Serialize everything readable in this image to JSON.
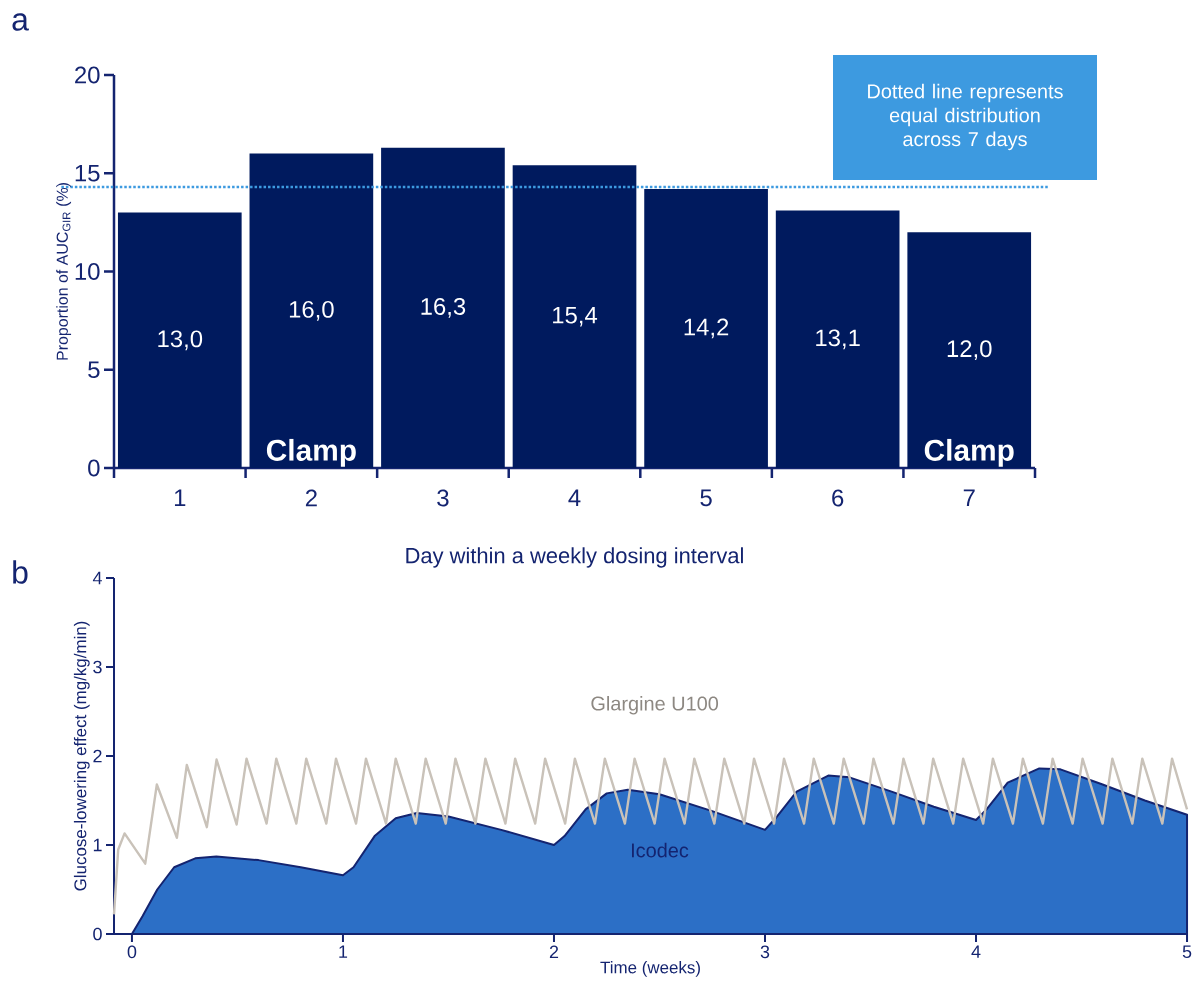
{
  "chart_data": [
    {
      "type": "bar",
      "title": "a",
      "xlabel": "Day within a weekly dosing interval",
      "ylabel": "Proportion of AUC$_{GIR}$ (%)",
      "categories": [
        "1",
        "2",
        "3",
        "4",
        "5",
        "6",
        "7"
      ],
      "values": [
        13.0,
        16.0,
        16.3,
        15.4,
        14.2,
        13.1,
        12.0
      ],
      "value_labels": [
        "13,0",
        "16,0",
        "16,3",
        "15,4",
        "14,2",
        "13,1",
        "12,0"
      ],
      "color": "#001a5e",
      "ylim": [
        0,
        20
      ],
      "yticks": [
        0,
        5,
        10,
        15,
        20
      ],
      "ref_lines": [
        {
          "axis": "y",
          "value": 14.3,
          "label": "Dotted line represents equal distribution across 7 days",
          "color": "#3d9ae0",
          "line_style": "dotted"
        }
      ],
      "annotations": [
        {
          "text": "Clamp",
          "x": "2",
          "y": 0
        },
        {
          "text": "Clamp",
          "x": "7",
          "y": 0
        }
      ]
    },
    {
      "type": "line",
      "title": "b",
      "xlabel": "Time (weeks)",
      "ylabel": "Glucose-lowering effect (mg/kg/min)",
      "xlim": [
        -0.085,
        5
      ],
      "xticks": [
        0,
        1,
        2,
        3,
        4,
        5
      ],
      "ylim": [
        0,
        4
      ],
      "yticks": [
        0,
        1,
        2,
        3,
        4
      ],
      "series": [
        {
          "name": "Icodec",
          "type": "area",
          "color": "#2c6fc6",
          "x": [
            0,
            0.05,
            0.12,
            0.2,
            0.3,
            0.4,
            0.6,
            0.8,
            1.0,
            1.05,
            1.15,
            1.25,
            1.35,
            1.5,
            1.75,
            2.0,
            2.05,
            2.15,
            2.25,
            2.35,
            2.5,
            2.75,
            3.0,
            3.05,
            3.15,
            3.3,
            3.4,
            3.6,
            3.8,
            4.0,
            4.05,
            4.15,
            4.3,
            4.4,
            4.6,
            4.8,
            5.0
          ],
          "values": [
            0,
            0.2,
            0.5,
            0.75,
            0.85,
            0.87,
            0.83,
            0.75,
            0.66,
            0.75,
            1.1,
            1.3,
            1.36,
            1.32,
            1.17,
            1.0,
            1.1,
            1.4,
            1.58,
            1.62,
            1.57,
            1.38,
            1.17,
            1.3,
            1.6,
            1.78,
            1.76,
            1.6,
            1.43,
            1.28,
            1.4,
            1.7,
            1.86,
            1.85,
            1.68,
            1.5,
            1.34
          ]
        },
        {
          "name": "Glargine U100",
          "type": "line",
          "color": "#c9c2b9",
          "x": [
            -0.085,
            -0.065,
            -0.035,
            0.063,
            0.118,
            0.213,
            0.26,
            0.355,
            0.401,
            0.496,
            0.543,
            0.638,
            0.684,
            0.779,
            0.826,
            0.921,
            0.967,
            1.062,
            1.109,
            1.204,
            1.25,
            1.345,
            1.392,
            1.487,
            1.533,
            1.628,
            1.675,
            1.77,
            1.816,
            1.911,
            1.958,
            2.053,
            2.099,
            2.194,
            2.241,
            2.336,
            2.382,
            2.477,
            2.524,
            2.619,
            2.665,
            2.76,
            2.807,
            2.902,
            2.948,
            3.043,
            3.09,
            3.185,
            3.231,
            3.326,
            3.373,
            3.468,
            3.514,
            3.609,
            3.656,
            3.751,
            3.797,
            3.892,
            3.939,
            4.034,
            4.08,
            4.175,
            4.222,
            4.317,
            4.363,
            4.458,
            4.505,
            4.6,
            4.646,
            4.741,
            4.788,
            4.883,
            4.929,
            5.0
          ],
          "values": [
            0.22,
            0.95,
            1.13,
            0.79,
            1.68,
            1.08,
            1.9,
            1.2,
            1.96,
            1.23,
            1.97,
            1.24,
            1.97,
            1.24,
            1.97,
            1.24,
            1.97,
            1.24,
            1.97,
            1.24,
            1.97,
            1.24,
            1.97,
            1.24,
            1.97,
            1.24,
            1.97,
            1.24,
            1.97,
            1.24,
            1.97,
            1.24,
            1.97,
            1.24,
            1.97,
            1.24,
            1.97,
            1.24,
            1.97,
            1.24,
            1.97,
            1.24,
            1.97,
            1.24,
            1.97,
            1.24,
            1.97,
            1.24,
            1.97,
            1.24,
            1.97,
            1.24,
            1.97,
            1.24,
            1.97,
            1.24,
            1.97,
            1.24,
            1.97,
            1.24,
            1.97,
            1.24,
            1.97,
            1.24,
            1.97,
            1.24,
            1.97,
            1.24,
            1.97,
            1.24,
            1.97,
            1.24,
            1.97,
            1.4
          ]
        }
      ]
    }
  ]
}
